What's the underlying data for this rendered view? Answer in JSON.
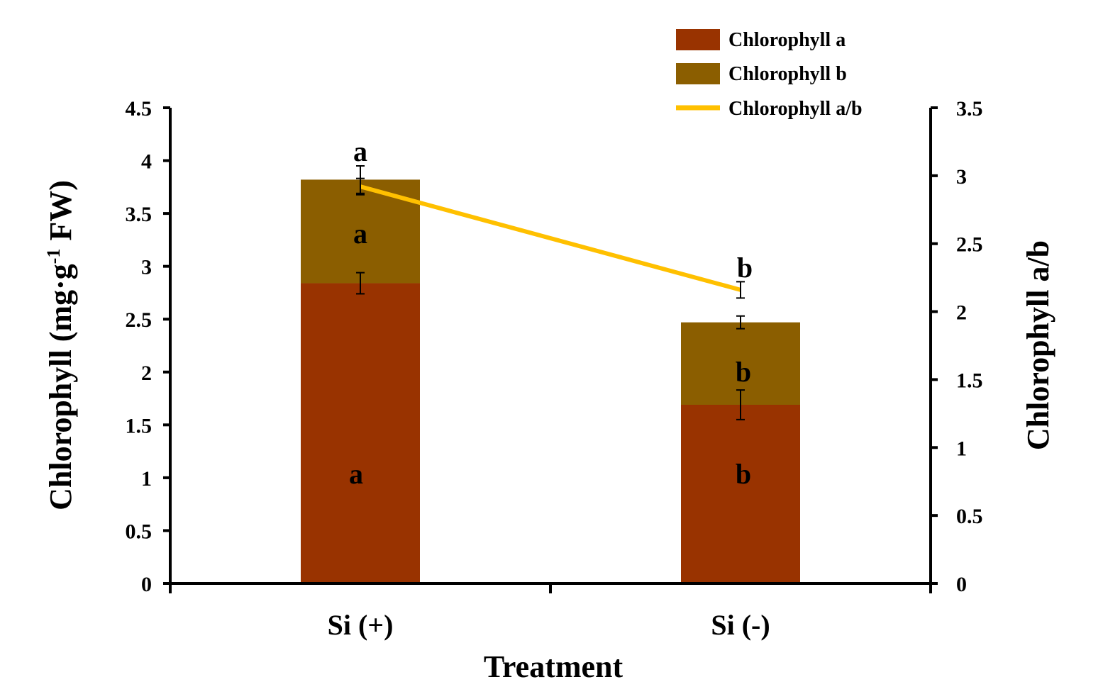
{
  "chart_data": {
    "type": "bar",
    "stacked": true,
    "categories": [
      "Si (+)",
      "Si (-)"
    ],
    "xlabel": "Treatment",
    "ylabel": {
      "main": "Chlorophyll (mg·g",
      "sup": "-1",
      "tail": " FW)"
    },
    "y2label": "Chlorophyll a/b",
    "ylim": [
      0,
      4.5
    ],
    "y2lim": [
      0,
      3.5
    ],
    "yticks": [
      "0",
      "0.5",
      "1",
      "1.5",
      "2",
      "2.5",
      "3",
      "3.5",
      "4",
      "4.5"
    ],
    "y2ticks": [
      "0",
      "0.5",
      "1",
      "1.5",
      "2",
      "2.5",
      "3",
      "3.5"
    ],
    "series": [
      {
        "name": "Chlorophyll a",
        "kind": "bar",
        "axis": "left",
        "color": "#993300",
        "values": [
          2.84,
          1.69
        ],
        "errors": [
          0.1,
          0.14
        ],
        "letters": [
          "a",
          "b"
        ]
      },
      {
        "name": "Chlorophyll b",
        "kind": "bar",
        "axis": "left",
        "color": "#8B5E00",
        "values": [
          0.98,
          0.78
        ],
        "errors": [
          0.13,
          0.06
        ],
        "letters": [
          "a",
          "b"
        ]
      },
      {
        "name": "Chlorophyll a/b",
        "kind": "line",
        "axis": "right",
        "color": "#FFC000",
        "values": [
          2.92,
          2.16
        ],
        "errors": [
          0.06,
          0.06
        ],
        "letters": [
          "a",
          "b"
        ]
      }
    ],
    "legend": {
      "placement": "top-right"
    },
    "grid": false
  }
}
